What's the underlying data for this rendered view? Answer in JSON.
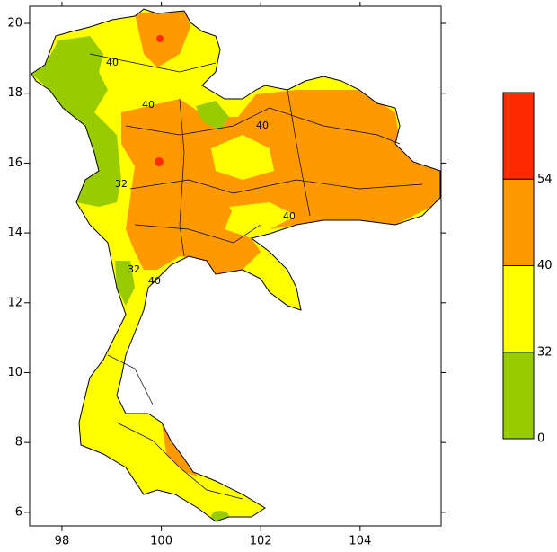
{
  "map": {
    "xlim": [
      97.35,
      105.63
    ],
    "ylim": [
      5.61,
      20.49
    ],
    "xticks": [
      98,
      100,
      102,
      104
    ],
    "yticks": [
      6,
      8,
      10,
      12,
      14,
      16,
      18,
      20
    ],
    "colorbar": {
      "labels": [
        0,
        32,
        40,
        54
      ],
      "colors": [
        "#99cc00",
        "#ffff00",
        "#ff9900",
        "#ff2a00"
      ]
    },
    "contour_labels": [
      "40",
      "40",
      "40",
      "40",
      "32",
      "32",
      "40"
    ]
  }
}
